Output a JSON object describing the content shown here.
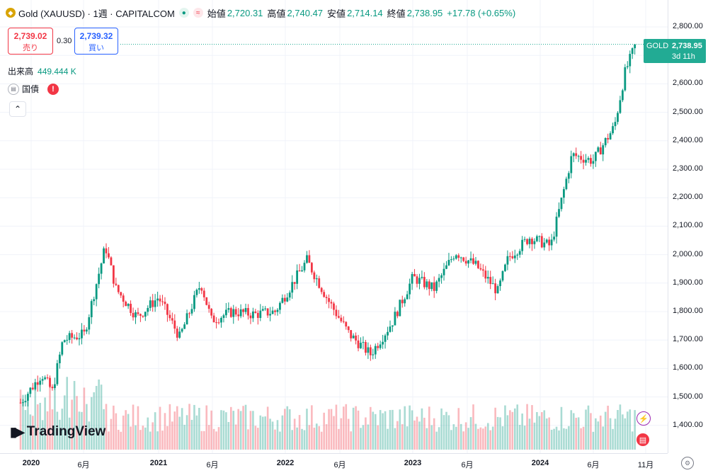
{
  "header": {
    "symbol_title": "Gold (XAUUSD) · 1週 · CAPITALCOM",
    "open_label": "始値",
    "open_value": "2,720.31",
    "high_label": "高値",
    "high_value": "2,740.47",
    "low_label": "安値",
    "low_value": "2,714.14",
    "close_label": "終値",
    "close_value": "2,738.95",
    "change_value": "+17.78 (+0.65%)",
    "up_color": "#089981",
    "down_color": "#f23645"
  },
  "order": {
    "sell_price": "2,739.02",
    "sell_label": "売り",
    "spread": "0.30",
    "buy_price": "2,739.32",
    "buy_label": "買い"
  },
  "volume": {
    "label": "出来高",
    "value": "449.444 K"
  },
  "bond": {
    "label": "国債"
  },
  "price_label": {
    "symbol": "GOLD",
    "price": "2,738.95",
    "countdown": "3d 11h"
  },
  "logo": {
    "text": "TradingView"
  },
  "chart_data": {
    "type": "candlestick",
    "price_ticks": [
      "2,800.00",
      "2,700.00",
      "2,600.00",
      "2,500.00",
      "2,400.00",
      "2,300.00",
      "2,200.00",
      "2,100.00",
      "2,000.00",
      "1,900.00",
      "1,800.00",
      "1,700.00",
      "1,600.00",
      "1,500.00",
      "1,400.00"
    ],
    "time_ticks": [
      {
        "label": "2020",
        "major": true
      },
      {
        "label": "6月",
        "major": false
      },
      {
        "label": "2021",
        "major": true
      },
      {
        "label": "6月",
        "major": false
      },
      {
        "label": "2022",
        "major": true
      },
      {
        "label": "6月",
        "major": false
      },
      {
        "label": "2023",
        "major": true
      },
      {
        "label": "6月",
        "major": false
      },
      {
        "label": "2024",
        "major": true
      },
      {
        "label": "6月",
        "major": false
      },
      {
        "label": "11月",
        "major": false
      }
    ],
    "ylim": [
      1340,
      2830
    ],
    "close_path": [
      [
        "2019-12",
        1480
      ],
      [
        "2020-02",
        1580
      ],
      [
        "2020-03",
        1520
      ],
      [
        "2020-04",
        1700
      ],
      [
        "2020-06",
        1720
      ],
      [
        "2020-08",
        2030
      ],
      [
        "2020-09",
        1880
      ],
      [
        "2020-11",
        1780
      ],
      [
        "2021-01",
        1850
      ],
      [
        "2021-03",
        1710
      ],
      [
        "2021-05",
        1900
      ],
      [
        "2021-06",
        1770
      ],
      [
        "2021-08",
        1800
      ],
      [
        "2021-10",
        1790
      ],
      [
        "2021-12",
        1800
      ],
      [
        "2022-03",
        1980
      ],
      [
        "2022-05",
        1840
      ],
      [
        "2022-07",
        1720
      ],
      [
        "2022-09",
        1650
      ],
      [
        "2022-11",
        1760
      ],
      [
        "2023-01",
        1920
      ],
      [
        "2023-03",
        1880
      ],
      [
        "2023-05",
        2010
      ],
      [
        "2023-07",
        1960
      ],
      [
        "2023-09",
        1870
      ],
      [
        "2023-10",
        1990
      ],
      [
        "2023-12",
        2060
      ],
      [
        "2024-02",
        2030
      ],
      [
        "2024-04",
        2350
      ],
      [
        "2024-06",
        2330
      ],
      [
        "2024-08",
        2450
      ],
      [
        "2024-09",
        2640
      ],
      [
        "2024-10",
        2738.95
      ]
    ]
  }
}
